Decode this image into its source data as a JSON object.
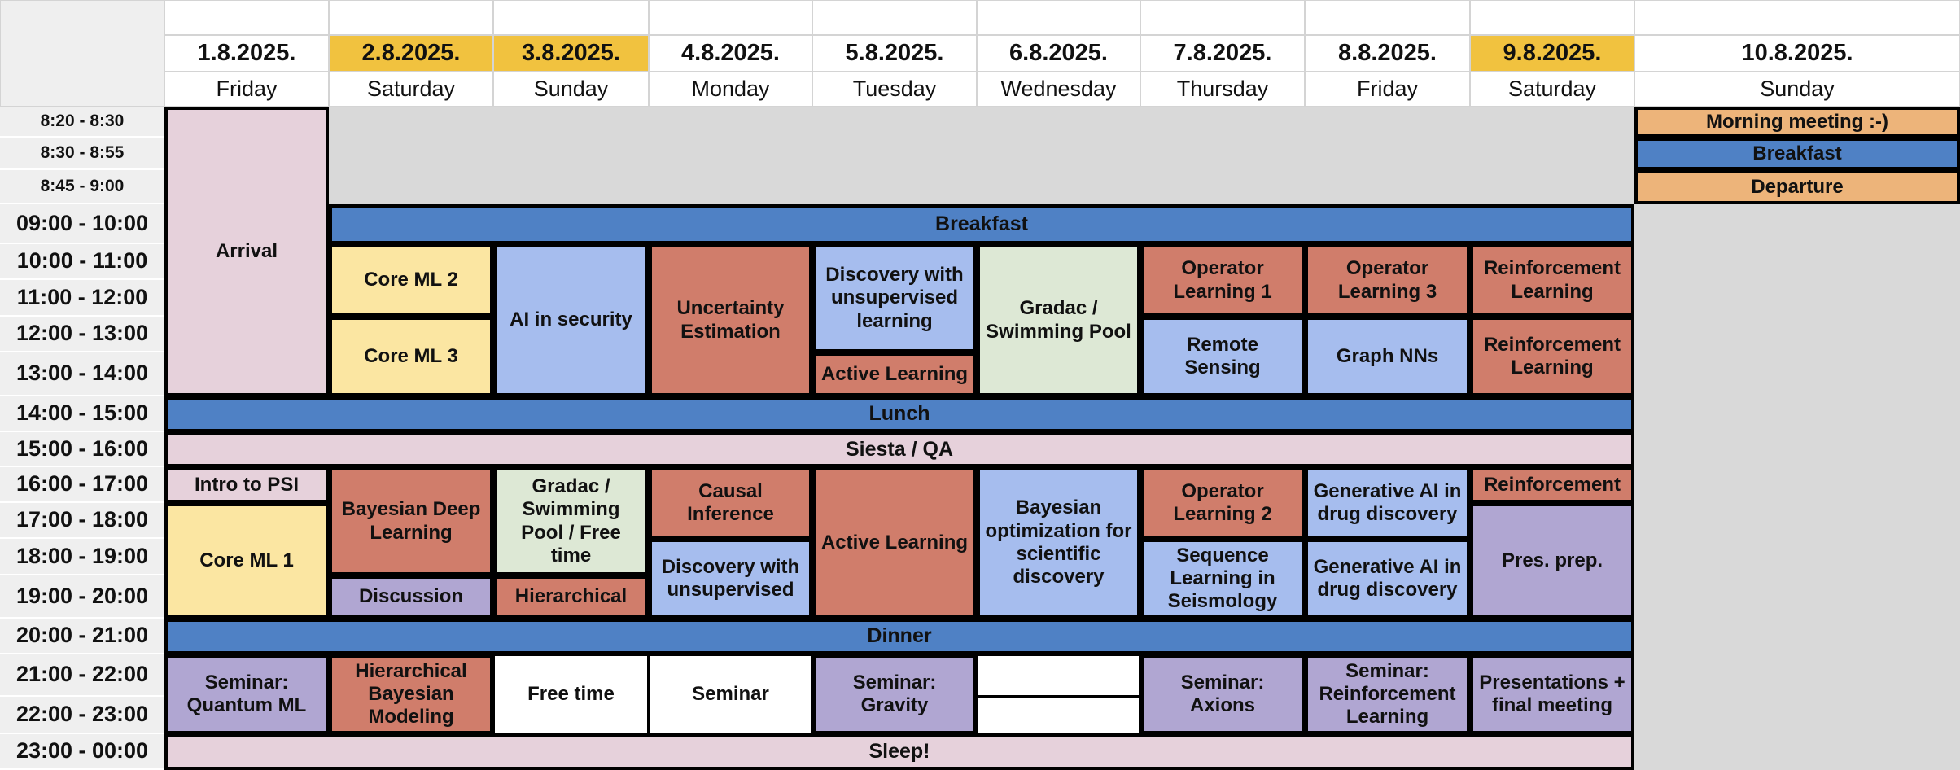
{
  "colors": {
    "weekend_date_bg": "#f1c23f",
    "meal_blue": "#4f81c5",
    "arrival_pink": "#e6d1db",
    "core_yellow": "#fbe6a2",
    "topic_blue": "#a6bdee",
    "topic_red": "#d07d6b",
    "leisure_green": "#dde8d5",
    "seminar_purple": "#b0a6d2",
    "departure_orange": "#edb47a",
    "empty_grey": "#d9d9d9",
    "time_column_bg": "#efefef"
  },
  "header": {
    "dates": [
      "1.8.2025.",
      "2.8.2025.",
      "3.8.2025.",
      "4.8.2025.",
      "5.8.2025.",
      "6.8.2025.",
      "7.8.2025.",
      "8.8.2025.",
      "9.8.2025.",
      "10.8.2025."
    ],
    "days": [
      "Friday",
      "Saturday",
      "Sunday",
      "Monday",
      "Tuesday",
      "Wednesday",
      "Thursday",
      "Friday",
      "Saturday",
      "Sunday"
    ],
    "weekend_highlight": [
      false,
      true,
      true,
      false,
      false,
      false,
      false,
      false,
      true,
      false
    ]
  },
  "time_slots": [
    "8:20 - 8:30",
    "8:30 - 8:55",
    "8:45 - 9:00",
    "09:00 - 10:00",
    "10:00 - 11:00",
    "11:00 - 12:00",
    "12:00 - 13:00",
    "13:00 - 14:00",
    "14:00 - 15:00",
    "15:00 - 16:00",
    "16:00 - 17:00",
    "17:00 - 18:00",
    "18:00 - 19:00",
    "19:00 - 20:00",
    "20:00 - 21:00",
    "21:00 - 22:00",
    "22:00 - 23:00",
    "23:00 - 00:00"
  ],
  "events": [
    {
      "title": "Arrival",
      "day": 0,
      "start": 0,
      "span": 8,
      "cols": 1,
      "color": "arrival_pink"
    },
    {
      "title": "",
      "day": 1,
      "start": 0,
      "span": 3,
      "cols": 8,
      "color": "empty_grey"
    },
    {
      "title": "Morning meeting :-)",
      "day": 9,
      "start": 0,
      "span": 1,
      "cols": 1,
      "color": "departure_orange"
    },
    {
      "title": "Breakfast",
      "day": 9,
      "start": 1,
      "span": 1,
      "cols": 1,
      "color": "meal_blue"
    },
    {
      "title": "Departure",
      "day": 9,
      "start": 2,
      "span": 1,
      "cols": 1,
      "color": "departure_orange"
    },
    {
      "title": "",
      "day": 9,
      "start": 3,
      "span": 15,
      "cols": 1,
      "color": "empty_grey"
    },
    {
      "title": "Breakfast",
      "day": 1,
      "start": 3,
      "span": 1,
      "cols": 8,
      "color": "meal_blue"
    },
    {
      "title": "Core ML 2",
      "day": 1,
      "start": 4,
      "span": 2,
      "cols": 1,
      "color": "core_yellow"
    },
    {
      "title": "Core ML 3",
      "day": 1,
      "start": 6,
      "span": 2,
      "cols": 1,
      "color": "core_yellow"
    },
    {
      "title": "AI in security",
      "day": 2,
      "start": 4,
      "span": 4,
      "cols": 1,
      "color": "topic_blue"
    },
    {
      "title": "Uncertainty Estimation",
      "day": 3,
      "start": 4,
      "span": 4,
      "cols": 1,
      "color": "topic_red"
    },
    {
      "title": "Discovery with unsupervised learning",
      "day": 4,
      "start": 4,
      "span": 3,
      "cols": 1,
      "color": "topic_blue"
    },
    {
      "title": "Active Learning",
      "day": 4,
      "start": 7,
      "span": 1,
      "cols": 1,
      "color": "topic_red"
    },
    {
      "title": "Gradac / Swimming Pool",
      "day": 5,
      "start": 4,
      "span": 4,
      "cols": 1,
      "color": "leisure_green"
    },
    {
      "title": "Operator Learning 1",
      "day": 6,
      "start": 4,
      "span": 2,
      "cols": 1,
      "color": "topic_red"
    },
    {
      "title": "Remote Sensing",
      "day": 6,
      "start": 6,
      "span": 2,
      "cols": 1,
      "color": "topic_blue"
    },
    {
      "title": "Operator Learning 3",
      "day": 7,
      "start": 4,
      "span": 2,
      "cols": 1,
      "color": "topic_red"
    },
    {
      "title": "Graph NNs",
      "day": 7,
      "start": 6,
      "span": 2,
      "cols": 1,
      "color": "topic_blue"
    },
    {
      "title": "Reinforcement Learning",
      "day": 8,
      "start": 4,
      "span": 2,
      "cols": 1,
      "color": "topic_red"
    },
    {
      "title": "Reinforcement Learning",
      "day": 8,
      "start": 6,
      "span": 2,
      "cols": 1,
      "color": "topic_red"
    },
    {
      "title": "Lunch",
      "day": 0,
      "start": 8,
      "span": 1,
      "cols": 9,
      "color": "meal_blue"
    },
    {
      "title": "Siesta / QA",
      "day": 0,
      "start": 9,
      "span": 1,
      "cols": 9,
      "color": "arrival_pink"
    },
    {
      "title": "Intro to PSI",
      "day": 0,
      "start": 10,
      "span": 1,
      "cols": 1,
      "color": "arrival_pink"
    },
    {
      "title": "Core ML 1",
      "day": 0,
      "start": 11,
      "span": 3,
      "cols": 1,
      "color": "core_yellow"
    },
    {
      "title": "Bayesian Deep Learning",
      "day": 1,
      "start": 10,
      "span": 3,
      "cols": 1,
      "color": "topic_red"
    },
    {
      "title": "Discussion",
      "day": 1,
      "start": 13,
      "span": 1,
      "cols": 1,
      "color": "seminar_purple"
    },
    {
      "title": "Gradac / Swimming Pool / Free time",
      "day": 2,
      "start": 10,
      "span": 3,
      "cols": 1,
      "color": "leisure_green"
    },
    {
      "title": "Hierarchical",
      "day": 2,
      "start": 13,
      "span": 1,
      "cols": 1,
      "color": "topic_red"
    },
    {
      "title": "Causal Inference",
      "day": 3,
      "start": 10,
      "span": 2,
      "cols": 1,
      "color": "topic_red"
    },
    {
      "title": "Discovery with unsupervised",
      "day": 3,
      "start": 12,
      "span": 2,
      "cols": 1,
      "color": "topic_blue"
    },
    {
      "title": "Active Learning",
      "day": 4,
      "start": 10,
      "span": 4,
      "cols": 1,
      "color": "topic_red"
    },
    {
      "title": "Bayesian optimization for scientific discovery",
      "day": 5,
      "start": 10,
      "span": 4,
      "cols": 1,
      "color": "topic_blue"
    },
    {
      "title": "Operator Learning 2",
      "day": 6,
      "start": 10,
      "span": 2,
      "cols": 1,
      "color": "topic_red"
    },
    {
      "title": "Sequence Learning in Seismology",
      "day": 6,
      "start": 12,
      "span": 2,
      "cols": 1,
      "color": "topic_blue"
    },
    {
      "title": "Generative AI in drug discovery",
      "day": 7,
      "start": 10,
      "span": 2,
      "cols": 1,
      "color": "topic_blue"
    },
    {
      "title": "Generative AI in drug discovery",
      "day": 7,
      "start": 12,
      "span": 2,
      "cols": 1,
      "color": "topic_blue"
    },
    {
      "title": "Reinforcement",
      "day": 8,
      "start": 10,
      "span": 1,
      "cols": 1,
      "color": "topic_red"
    },
    {
      "title": "Pres. prep.",
      "day": 8,
      "start": 11,
      "span": 3,
      "cols": 1,
      "color": "seminar_purple"
    },
    {
      "title": "Dinner",
      "day": 0,
      "start": 14,
      "span": 1,
      "cols": 9,
      "color": "meal_blue"
    },
    {
      "title": "Seminar: Quantum ML",
      "day": 0,
      "start": 15,
      "span": 2,
      "cols": 1,
      "color": "seminar_purple"
    },
    {
      "title": "Hierarchical Bayesian Modeling",
      "day": 1,
      "start": 15,
      "span": 2,
      "cols": 1,
      "color": "topic_red"
    },
    {
      "title": "Free time",
      "day": 2,
      "start": 15,
      "span": 2,
      "cols": 1,
      "color": "white",
      "thin": true
    },
    {
      "title": "Seminar",
      "day": 3,
      "start": 15,
      "span": 2,
      "cols": 1,
      "color": "white",
      "thin": true
    },
    {
      "title": "Seminar: Gravity",
      "day": 4,
      "start": 15,
      "span": 2,
      "cols": 1,
      "color": "seminar_purple"
    },
    {
      "title": "",
      "day": 5,
      "start": 15,
      "span": 1,
      "cols": 1,
      "color": "white",
      "thin": true
    },
    {
      "title": "",
      "day": 5,
      "start": 16,
      "span": 1,
      "cols": 1,
      "color": "white",
      "thin": true
    },
    {
      "title": "Seminar: Axions",
      "day": 6,
      "start": 15,
      "span": 2,
      "cols": 1,
      "color": "seminar_purple"
    },
    {
      "title": "Seminar: Reinforcement Learning",
      "day": 7,
      "start": 15,
      "span": 2,
      "cols": 1,
      "color": "seminar_purple"
    },
    {
      "title": "Presentations + final meeting",
      "day": 8,
      "start": 15,
      "span": 2,
      "cols": 1,
      "color": "seminar_purple"
    },
    {
      "title": "Sleep!",
      "day": 0,
      "start": 17,
      "span": 1,
      "cols": 9,
      "color": "arrival_pink"
    }
  ]
}
